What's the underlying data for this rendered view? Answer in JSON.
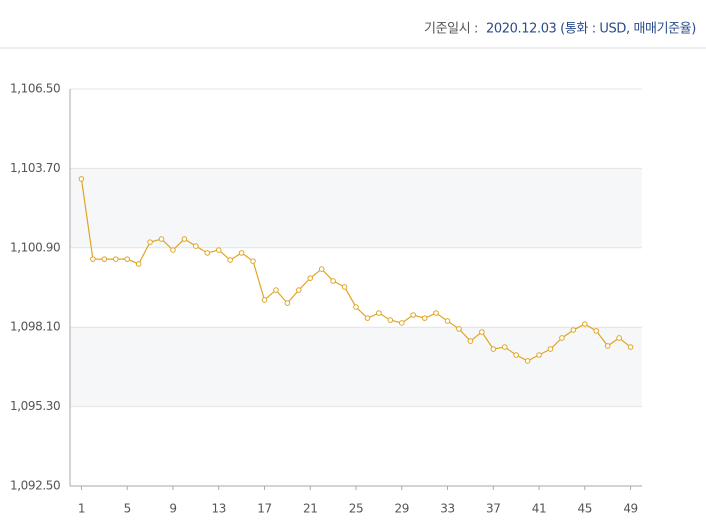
{
  "header": {
    "label": "기준일시 :",
    "value": "2020.12.03 (통화 : USD, 매매기준율)"
  },
  "chart_data": {
    "type": "line",
    "x": [
      1,
      2,
      3,
      4,
      5,
      6,
      7,
      8,
      9,
      10,
      11,
      12,
      13,
      14,
      15,
      16,
      17,
      18,
      19,
      20,
      21,
      22,
      23,
      24,
      25,
      26,
      27,
      28,
      29,
      30,
      31,
      32,
      33,
      34,
      35,
      36,
      37,
      38,
      39,
      40,
      41,
      42,
      43,
      44,
      45,
      46,
      47,
      48,
      49
    ],
    "series": [
      {
        "color": "#e0a526",
        "values": [
          1103.33,
          1100.5,
          1100.5,
          1100.5,
          1100.5,
          1100.33,
          1101.1,
          1101.21,
          1100.82,
          1101.21,
          1100.96,
          1100.72,
          1100.82,
          1100.47,
          1100.72,
          1100.43,
          1099.06,
          1099.41,
          1098.95,
          1099.41,
          1099.83,
          1100.15,
          1099.73,
          1099.52,
          1098.81,
          1098.42,
          1098.6,
          1098.35,
          1098.25,
          1098.53,
          1098.42,
          1098.6,
          1098.32,
          1098.04,
          1097.61,
          1097.93,
          1097.33,
          1097.4,
          1097.12,
          1096.91,
          1097.12,
          1097.33,
          1097.72,
          1098.0,
          1098.21,
          1097.97,
          1097.44,
          1097.72,
          1097.4
        ]
      }
    ],
    "xlim": [
      0,
      50
    ],
    "xticks": [
      1,
      5,
      9,
      13,
      17,
      21,
      25,
      29,
      33,
      37,
      41,
      45,
      49
    ],
    "ylim": [
      1092.5,
      1106.5
    ],
    "yticks": [
      {
        "value": 1092.5,
        "label": "1,092.50"
      },
      {
        "value": 1095.3,
        "label": "1,095.30"
      },
      {
        "value": 1098.1,
        "label": "1,098.10"
      },
      {
        "value": 1100.9,
        "label": "1,100.90"
      },
      {
        "value": 1103.7,
        "label": "1,103.70"
      },
      {
        "value": 1106.5,
        "label": "1,106.50"
      }
    ],
    "grid": true
  }
}
